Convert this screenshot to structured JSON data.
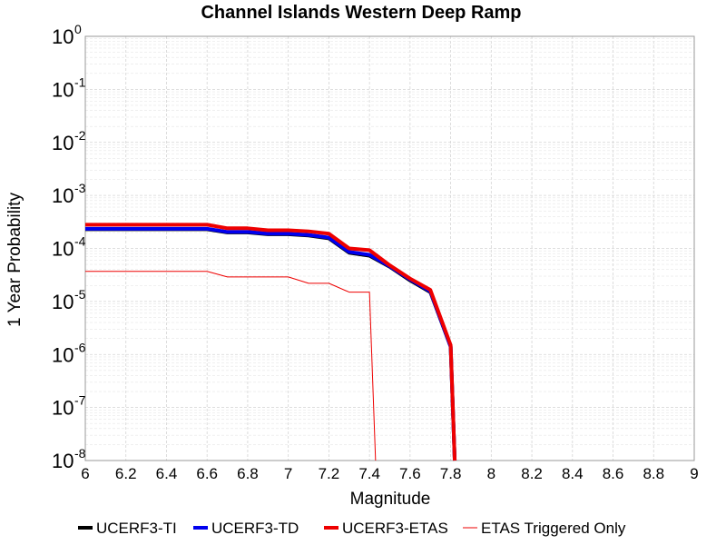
{
  "chart_data": {
    "type": "line",
    "title": "Channel Islands Western Deep Ramp",
    "xlabel": "Magnitude",
    "ylabel": "1 Year Probability",
    "xlim": [
      6,
      9
    ],
    "ylim": [
      1e-08,
      1
    ],
    "yscale": "log",
    "grid": true,
    "legend_position": "bottom",
    "x_ticks": [
      "6",
      "6.2",
      "6.4",
      "6.6",
      "6.8",
      "7",
      "7.2",
      "7.4",
      "7.6",
      "7.8",
      "8",
      "8.2",
      "8.4",
      "8.6",
      "8.8",
      "9"
    ],
    "y_ticks": [
      {
        "base": "10",
        "exp": "0"
      },
      {
        "base": "10",
        "exp": "-1"
      },
      {
        "base": "10",
        "exp": "-2"
      },
      {
        "base": "10",
        "exp": "-3"
      },
      {
        "base": "10",
        "exp": "-4"
      },
      {
        "base": "10",
        "exp": "-5"
      },
      {
        "base": "10",
        "exp": "-6"
      },
      {
        "base": "10",
        "exp": "-7"
      },
      {
        "base": "10",
        "exp": "-8"
      }
    ],
    "series": [
      {
        "name": "UCERF3-TI",
        "color": "#000000",
        "line_width": 4,
        "x": [
          6.0,
          6.6,
          6.7,
          6.8,
          6.9,
          7.0,
          7.1,
          7.2,
          7.3,
          7.4,
          7.5,
          7.6,
          7.7,
          7.8,
          7.82
        ],
        "y": [
          0.00023,
          0.00023,
          0.0002,
          0.0002,
          0.000185,
          0.000185,
          0.000175,
          0.000155,
          8.3e-05,
          7.3e-05,
          4.5e-05,
          2.5e-05,
          1.5e-05,
          1.4e-06,
          1e-08
        ]
      },
      {
        "name": "UCERF3-TD",
        "color": "#0000ee",
        "line_width": 4,
        "x": [
          6.0,
          6.6,
          6.7,
          6.8,
          6.9,
          7.0,
          7.1,
          7.2,
          7.3,
          7.4,
          7.5,
          7.6,
          7.7,
          7.8,
          7.82
        ],
        "y": [
          0.000235,
          0.000235,
          0.000205,
          0.000205,
          0.00019,
          0.00019,
          0.00018,
          0.00016,
          8.6e-05,
          7.6e-05,
          4.6e-05,
          2.6e-05,
          1.55e-05,
          1.4e-06,
          1e-08
        ]
      },
      {
        "name": "UCERF3-ETAS",
        "color": "#ee0000",
        "line_width": 4,
        "x": [
          6.0,
          6.6,
          6.7,
          6.8,
          6.9,
          7.0,
          7.1,
          7.2,
          7.3,
          7.4,
          7.5,
          7.6,
          7.7,
          7.8,
          7.82
        ],
        "y": [
          0.00028,
          0.00028,
          0.00024,
          0.00024,
          0.00022,
          0.00022,
          0.00021,
          0.00019,
          0.0001,
          9.3e-05,
          4.8e-05,
          2.7e-05,
          1.65e-05,
          1.5e-06,
          1e-08
        ]
      },
      {
        "name": "ETAS Triggered Only",
        "color": "#ee0000",
        "line_width": 1,
        "x": [
          6.0,
          6.6,
          6.7,
          6.8,
          6.9,
          7.0,
          7.1,
          7.2,
          7.3,
          7.4,
          7.43
        ],
        "y": [
          3.7e-05,
          3.7e-05,
          2.9e-05,
          2.9e-05,
          2.9e-05,
          2.9e-05,
          2.2e-05,
          2.2e-05,
          1.5e-05,
          1.5e-05,
          1e-08
        ]
      }
    ]
  }
}
